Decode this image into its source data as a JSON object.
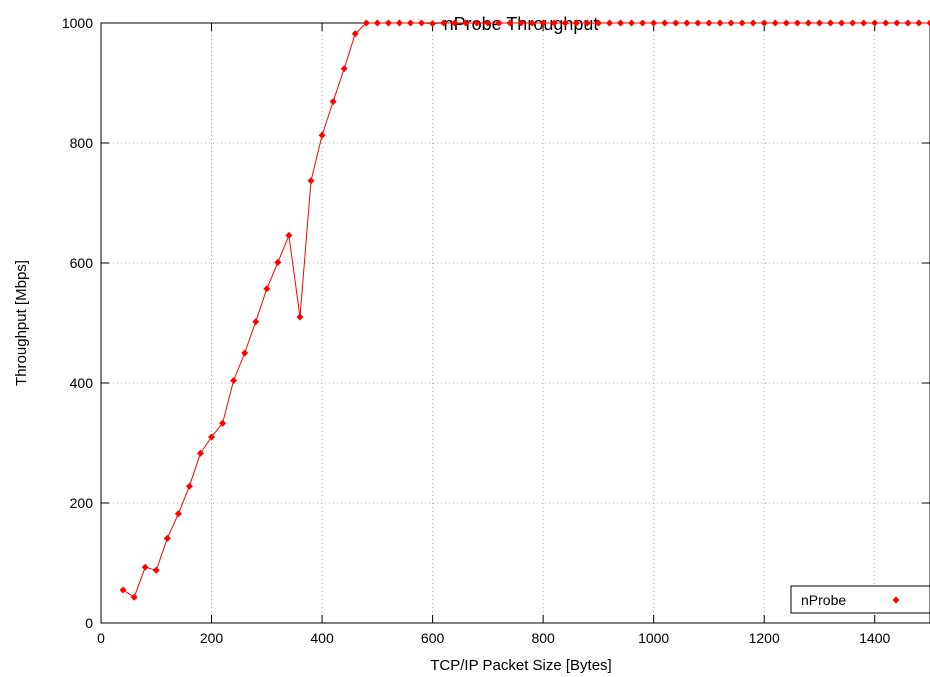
{
  "chart_data": {
    "type": "line",
    "title": "nProbe Throughput",
    "xlabel": "TCP/IP Packet Size [Bytes]",
    "ylabel": "Throughput [Mbps]",
    "xlim": [
      0,
      1500
    ],
    "ylim": [
      0,
      1000
    ],
    "xticks": [
      "0",
      "200",
      "400",
      "600",
      "800",
      "1000",
      "1200",
      "1400"
    ],
    "yticks": [
      "0",
      "200",
      "400",
      "600",
      "800",
      "1000"
    ],
    "grid": true,
    "legend_position": "bottom-right",
    "series": [
      {
        "name": "nProbe",
        "color": "#ff0000",
        "marker": "diamond",
        "x": [
          40,
          60,
          80,
          100,
          120,
          140,
          160,
          180,
          200,
          220,
          240,
          260,
          280,
          300,
          320,
          340,
          360,
          380,
          400,
          420,
          440,
          460,
          480,
          500,
          520,
          540,
          560,
          580,
          600,
          620,
          640,
          660,
          680,
          700,
          720,
          740,
          760,
          780,
          800,
          820,
          840,
          860,
          880,
          900,
          920,
          940,
          960,
          980,
          1000,
          1020,
          1040,
          1060,
          1080,
          1100,
          1120,
          1140,
          1160,
          1180,
          1200,
          1220,
          1240,
          1260,
          1280,
          1300,
          1320,
          1340,
          1360,
          1380,
          1400,
          1420,
          1440,
          1460,
          1480,
          1500
        ],
        "y": [
          55,
          43,
          93,
          88,
          141,
          182,
          228,
          283,
          310,
          333,
          404,
          450,
          502,
          557,
          601,
          646,
          510,
          737,
          813,
          869,
          924,
          982,
          1000,
          1000,
          1000,
          1000,
          1000,
          1000,
          999,
          1000,
          1000,
          1000,
          1000,
          1000,
          1000,
          1000,
          1000,
          1000,
          1000,
          1000,
          1000,
          1000,
          1000,
          1000,
          1000,
          1000,
          1000,
          1000,
          1000,
          1000,
          1000,
          1000,
          1000,
          1000,
          1000,
          1000,
          1000,
          1000,
          1000,
          1000,
          1000,
          1000,
          1000,
          1000,
          1000,
          1000,
          1000,
          1000,
          1000,
          1000,
          1000,
          1000,
          1000,
          1000
        ]
      }
    ]
  }
}
